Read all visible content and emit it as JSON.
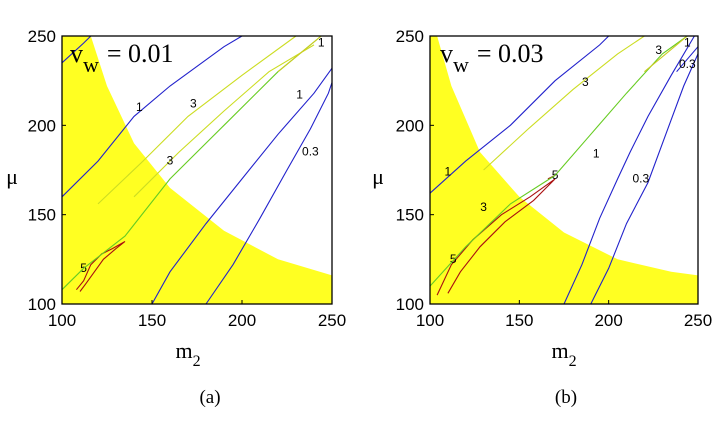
{
  "chart_data": [
    {
      "type": "contour",
      "panel_label": "(a)",
      "annotation": "v",
      "annotation_sub": "w",
      "annotation_value": "= 0.01",
      "xlabel": "m",
      "xlabel_sub": "2",
      "ylabel": "μ",
      "xlim": [
        100,
        250
      ],
      "ylim": [
        100,
        250
      ],
      "xticks": [
        "100",
        "150",
        "200",
        "250"
      ],
      "yticks": [
        "100",
        "150",
        "200",
        "250"
      ],
      "region_color": "#ffff22",
      "region_boundary": [
        [
          100,
          250
        ],
        [
          116,
          250
        ],
        [
          125,
          222
        ],
        [
          140,
          190
        ],
        [
          160,
          165
        ],
        [
          190,
          141
        ],
        [
          220,
          125
        ],
        [
          250,
          116
        ],
        [
          250,
          100
        ],
        [
          100,
          100
        ]
      ],
      "contours": [
        {
          "level": "5",
          "color": "#aa1010",
          "points": [
            [
              108,
              108
            ],
            [
              112,
              113
            ],
            [
              116,
              122
            ],
            [
              122,
              128
            ],
            [
              128,
              131
            ],
            [
              135,
              135
            ],
            [
              130,
              131
            ],
            [
              123,
              125
            ],
            [
              118,
              118
            ],
            [
              113,
              111
            ],
            [
              110,
              107
            ]
          ],
          "label_pos": [
            112,
            118
          ]
        },
        {
          "level": "3",
          "color": "#66cc22",
          "points": [
            [
              100,
              108
            ],
            [
              112,
              120
            ],
            [
              135,
              138
            ],
            [
              160,
              170
            ],
            [
              190,
              200
            ],
            [
              220,
              230
            ],
            [
              244,
              250
            ]
          ]
        },
        {
          "level": "1",
          "color": "#2222cc",
          "points": [
            [
              100,
              160
            ],
            [
              120,
              180
            ],
            [
              140,
              205
            ],
            [
              160,
              222
            ],
            [
              190,
              244
            ],
            [
              200,
              250
            ]
          ],
          "label_pos": [
            143,
            208
          ]
        },
        {
          "level": "3",
          "color": "#ccdd22",
          "points": [
            [
              120,
              156
            ],
            [
              145,
              180
            ],
            [
              170,
              205
            ],
            [
              200,
              228
            ],
            [
              230,
              250
            ]
          ],
          "label_pos": [
            173,
            210
          ]
        },
        {
          "level": "3",
          "color": "#ccdd22",
          "points": [
            [
              140,
              160
            ],
            [
              165,
              185
            ],
            [
              190,
              208
            ],
            [
              215,
              230
            ],
            [
              240,
              245
            ]
          ],
          "label_pos": [
            160,
            178
          ]
        },
        {
          "level": "1",
          "color": "#2222cc",
          "points": [
            [
              150,
              100
            ],
            [
              160,
              118
            ],
            [
              180,
              145
            ],
            [
              200,
              170
            ],
            [
              220,
              195
            ],
            [
              240,
              218
            ],
            [
              250,
              232
            ]
          ],
          "label_pos": [
            232,
            215
          ]
        },
        {
          "level": "0.3",
          "color": "#2222cc",
          "points": [
            [
              180,
              100
            ],
            [
              195,
              122
            ],
            [
              210,
              148
            ],
            [
              225,
              175
            ],
            [
              238,
              198
            ],
            [
              248,
              218
            ],
            [
              250,
              224
            ]
          ],
          "label_pos": [
            238,
            183
          ]
        },
        {
          "level": "1",
          "color": "#cccc22",
          "points": [
            [
              220,
              230
            ],
            [
              238,
              245
            ],
            [
              244,
              250
            ]
          ],
          "label_pos": [
            244,
            244
          ]
        },
        {
          "level": "",
          "color": "#2222cc",
          "points": [
            [
              100,
              235
            ],
            [
              112,
              246
            ],
            [
              116,
              250
            ]
          ]
        }
      ]
    },
    {
      "type": "contour",
      "panel_label": "(b)",
      "annotation": "v",
      "annotation_sub": "w",
      "annotation_value": "= 0.03",
      "xlabel": "m",
      "xlabel_sub": "2",
      "ylabel": "μ",
      "xlim": [
        100,
        250
      ],
      "ylim": [
        100,
        250
      ],
      "xticks": [
        "100",
        "150",
        "200",
        "250"
      ],
      "yticks": [
        "100",
        "150",
        "200",
        "250"
      ],
      "region_color": "#ffff22",
      "region_boundary": [
        [
          100,
          250
        ],
        [
          104,
          250
        ],
        [
          112,
          222
        ],
        [
          128,
          185
        ],
        [
          150,
          160
        ],
        [
          175,
          140
        ],
        [
          205,
          125
        ],
        [
          235,
          118
        ],
        [
          250,
          116
        ],
        [
          250,
          100
        ],
        [
          100,
          100
        ]
      ],
      "contours": [
        {
          "level": "5",
          "color": "#aa1010",
          "points": [
            [
              104,
              105
            ],
            [
              112,
              122
            ],
            [
              124,
              136
            ],
            [
              140,
              150
            ],
            [
              156,
              160
            ],
            [
              170,
              170
            ],
            [
              158,
              158
            ],
            [
              142,
              146
            ],
            [
              128,
              132
            ],
            [
              117,
              118
            ],
            [
              110,
              106
            ]
          ],
          "label_pos": [
            113,
            123
          ]
        },
        {
          "level": "5",
          "color": "#aa1010",
          "points": [
            [
              166,
              170
            ],
            [
              170,
              172
            ]
          ],
          "label_pos": [
            170,
            170
          ]
        },
        {
          "level": "3",
          "color": "#66cc22",
          "points": [
            [
              100,
              110
            ],
            [
              120,
              132
            ],
            [
              145,
              156
            ],
            [
              170,
              172
            ]
          ],
          "label_pos": [
            130,
            152
          ]
        },
        {
          "level": "1",
          "color": "#2222cc",
          "points": [
            [
              100,
              162
            ],
            [
              120,
              180
            ],
            [
              145,
              200
            ],
            [
              170,
              225
            ],
            [
              195,
              245
            ],
            [
              200,
              250
            ]
          ],
          "label_pos": [
            110,
            172
          ]
        },
        {
          "level": "3",
          "color": "#ccdd22",
          "points": [
            [
              130,
              175
            ],
            [
              155,
              198
            ],
            [
              180,
              220
            ],
            [
              205,
              240
            ],
            [
              220,
              250
            ]
          ],
          "label_pos": [
            187,
            222
          ]
        },
        {
          "level": "3",
          "color": "#66cc22",
          "points": [
            [
              170,
              172
            ],
            [
              190,
              195
            ],
            [
              210,
              218
            ],
            [
              230,
              240
            ],
            [
              244,
              250
            ]
          ],
          "label_pos": [
            228,
            240
          ]
        },
        {
          "level": "1",
          "color": "#2222cc",
          "points": [
            [
              175,
              100
            ],
            [
              185,
              122
            ],
            [
              195,
              148
            ],
            [
              205,
              170
            ],
            [
              212,
              185
            ],
            [
              222,
              205
            ],
            [
              235,
              228
            ],
            [
              248,
              250
            ]
          ],
          "label_pos": [
            193,
            182
          ]
        },
        {
          "level": "0.3",
          "color": "#2222cc",
          "points": [
            [
              190,
              100
            ],
            [
              200,
              120
            ],
            [
              210,
              145
            ],
            [
              222,
              168
            ],
            [
              232,
              195
            ],
            [
              242,
              222
            ],
            [
              250,
              240
            ]
          ],
          "label_pos": [
            218,
            168
          ]
        },
        {
          "level": "1",
          "color": "#cccc22",
          "points": [
            [
              220,
              230
            ],
            [
              238,
              245
            ],
            [
              244,
              250
            ]
          ],
          "label_pos": [
            244,
            244
          ]
        },
        {
          "level": "0.3",
          "color": "#2222cc",
          "points": [
            [
              238,
              230
            ],
            [
              250,
              244
            ]
          ],
          "label_pos": [
            244,
            232
          ]
        }
      ]
    }
  ]
}
